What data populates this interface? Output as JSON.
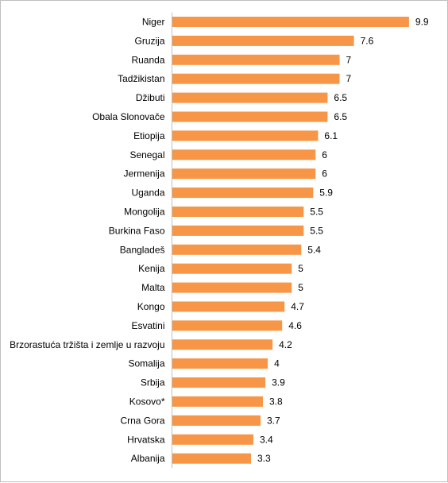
{
  "chart_data": {
    "type": "bar",
    "orientation": "horizontal",
    "title": "",
    "xlabel": "",
    "ylabel": "",
    "grid": false,
    "legend": "none",
    "bar_color": "#F79646",
    "categories": [
      "Niger",
      "Gruzija",
      "Ruanda",
      "Tadžikistan",
      "Džibuti",
      "Obala Slonovače",
      "Etiopija",
      "Senegal",
      "Jermenija",
      "Uganda",
      "Mongolija",
      "Burkina Faso",
      "Bangladeš",
      "Kenija",
      "Malta",
      "Kongo",
      "Esvatini",
      "Brzorastuća tržišta i zemlje u razvoju",
      "Somalija",
      "Srbija",
      "Kosovo*",
      "Crna Gora",
      "Hrvatska",
      "Albanija"
    ],
    "values": [
      9.9,
      7.6,
      7,
      7,
      6.5,
      6.5,
      6.1,
      6,
      6,
      5.9,
      5.5,
      5.5,
      5.4,
      5,
      5,
      4.7,
      4.6,
      4.2,
      4,
      3.9,
      3.8,
      3.7,
      3.4,
      3.3
    ],
    "value_labels": [
      "9.9",
      "7.6",
      "7",
      "7",
      "6.5",
      "6.5",
      "6.1",
      "6",
      "6",
      "5.9",
      "5.5",
      "5.5",
      "5.4",
      "5",
      "5",
      "4.7",
      "4.6",
      "4.2",
      "4",
      "3.9",
      "3.8",
      "3.7",
      "3.4",
      "3.3"
    ],
    "xlim": [
      0,
      10.6
    ]
  }
}
